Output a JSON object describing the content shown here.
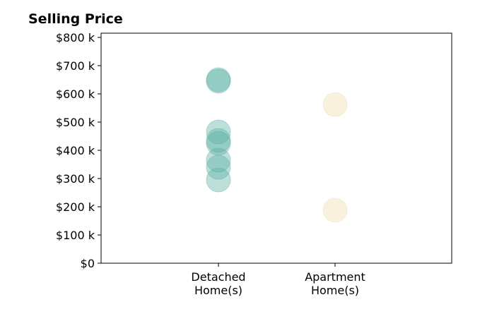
{
  "chart_data": {
    "type": "scatter",
    "title": "Selling Price",
    "xlabel": "",
    "ylabel": "",
    "categories": [
      [
        "Detached",
        "Home(s)"
      ],
      [
        "Apartment",
        "Home(s)"
      ]
    ],
    "y_ticks": [
      "$0",
      "$100 k",
      "$200 k",
      "$300 k",
      "$400 k",
      "$500 k",
      "$600 k",
      "$700 k",
      "$800 k"
    ],
    "ylim": [
      0,
      800000
    ],
    "grid": false,
    "series": [
      {
        "category": 0,
        "color": "#5aaea3",
        "values": [
          650000,
          645000,
          465000,
          435000,
          425000,
          365000,
          340000,
          295000
        ]
      },
      {
        "category": 1,
        "color": "#f1dba8",
        "values": [
          562000,
          188000
        ]
      }
    ]
  }
}
